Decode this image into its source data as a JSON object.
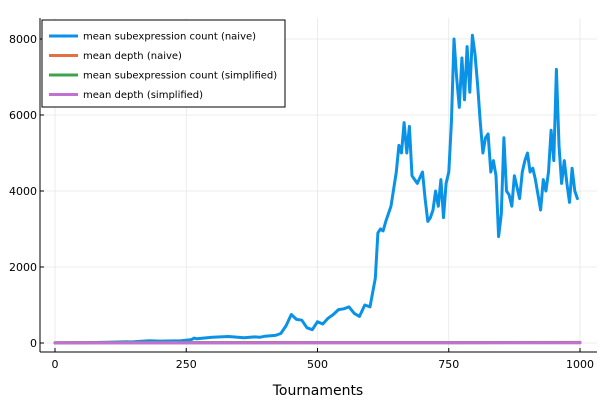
{
  "chart_data": {
    "type": "line",
    "title": "",
    "xlabel": "Tournaments",
    "ylabel": "",
    "xlim": [
      0,
      1000
    ],
    "ylim": [
      0,
      8200
    ],
    "xticks": [
      0,
      250,
      500,
      750,
      1000
    ],
    "yticks": [
      0,
      2000,
      4000,
      6000,
      8000
    ],
    "grid": true,
    "legend_position": "top-left",
    "series": [
      {
        "name": "mean subexpression count (naive)",
        "color": "#0a93e6",
        "x": [
          0,
          50,
          100,
          150,
          180,
          200,
          240,
          260,
          265,
          270,
          300,
          330,
          360,
          380,
          390,
          400,
          420,
          430,
          440,
          450,
          460,
          470,
          480,
          490,
          500,
          510,
          520,
          530,
          540,
          550,
          560,
          570,
          580,
          590,
          600,
          610,
          615,
          620,
          625,
          630,
          640,
          650,
          655,
          660,
          665,
          670,
          675,
          680,
          690,
          700,
          705,
          710,
          715,
          720,
          725,
          730,
          735,
          740,
          745,
          750,
          755,
          760,
          765,
          770,
          775,
          780,
          785,
          790,
          795,
          800,
          805,
          810,
          815,
          820,
          825,
          830,
          835,
          840,
          845,
          850,
          855,
          860,
          865,
          870,
          875,
          880,
          885,
          890,
          895,
          900,
          905,
          910,
          915,
          920,
          925,
          930,
          935,
          940,
          945,
          950,
          955,
          960,
          965,
          970,
          975,
          980,
          985,
          990,
          995
        ],
        "values": [
          0,
          5,
          20,
          35,
          60,
          50,
          60,
          90,
          130,
          110,
          150,
          170,
          140,
          160,
          150,
          180,
          200,
          250,
          450,
          750,
          620,
          600,
          400,
          350,
          560,
          500,
          650,
          750,
          880,
          900,
          950,
          780,
          700,
          1000,
          950,
          1700,
          2900,
          3000,
          2950,
          3200,
          3600,
          4500,
          5200,
          5000,
          5800,
          5000,
          5700,
          4400,
          4200,
          4500,
          3800,
          3200,
          3300,
          3500,
          4000,
          3600,
          4300,
          3300,
          4200,
          4500,
          5800,
          8000,
          7000,
          6200,
          7500,
          6400,
          7800,
          6600,
          8100,
          7600,
          6800,
          5800,
          5000,
          5400,
          5500,
          4500,
          4800,
          4400,
          2800,
          3400,
          5400,
          4000,
          3900,
          3600,
          4400,
          4100,
          3800,
          4500,
          4800,
          5000,
          4500,
          4600,
          4300,
          3900,
          3500,
          4300,
          4000,
          4500,
          5600,
          4800,
          7200,
          5200,
          4200,
          4800,
          4200,
          3700,
          4600,
          4000,
          3800
        ]
      },
      {
        "name": "mean depth (naive)",
        "color": "#e26f46",
        "x": [
          0,
          250,
          500,
          750,
          1000
        ],
        "values": [
          8,
          10,
          12,
          14,
          15
        ]
      },
      {
        "name": "mean subexpression count (simplified)",
        "color": "#3da44d",
        "x": [
          0,
          250,
          500,
          750,
          1000
        ],
        "values": [
          4,
          6,
          7,
          9,
          10
        ]
      },
      {
        "name": "mean depth (simplified)",
        "color": "#c271d2",
        "x": [
          0,
          250,
          500,
          750,
          1000
        ],
        "values": [
          2,
          3,
          4,
          5,
          6
        ]
      }
    ]
  }
}
